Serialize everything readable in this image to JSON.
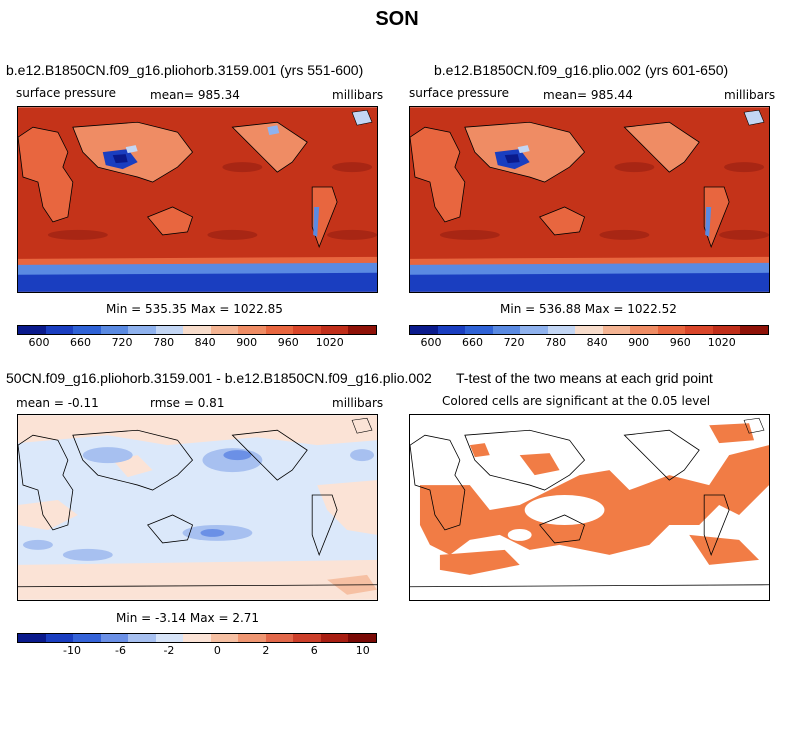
{
  "page": {
    "title": "SON"
  },
  "colors": {
    "absolute_scale": [
      "#0a1a8c",
      "#1a3ec0",
      "#2f62d6",
      "#5a8ae2",
      "#8fb2ee",
      "#c3d6f4",
      "#f7dccb",
      "#f4b493",
      "#ef8c64",
      "#e8663f",
      "#d9462a",
      "#c02e1a",
      "#8f1208"
    ],
    "diff_scale": [
      "#0a1a8c",
      "#1a3ec0",
      "#3563d8",
      "#6b90e6",
      "#a7c0f0",
      "#d7e4f8",
      "#fbe3d6",
      "#f6c0a3",
      "#ef9672",
      "#e2684a",
      "#cc3f2a",
      "#a81e12",
      "#7a0a06"
    ],
    "ocean_abs": "#c43319",
    "ocean_diff": "#dbe8fa",
    "significant": "#f17c45",
    "coast": "#000000"
  },
  "panels": [
    {
      "id": "case1",
      "title": "b.e12.B1850CN.f09_g16.pliohorb.3159.001 (yrs 551-600)",
      "left_label": "surface pressure",
      "center_label": "mean= 985.34",
      "right_label": "millibars",
      "minmax": "Min = 535.35 Max = 1022.85",
      "colorbar_ticks": [
        "600",
        "660",
        "720",
        "780",
        "840",
        "900",
        "960",
        "1020"
      ]
    },
    {
      "id": "case2",
      "title": "b.e12.B1850CN.f09_g16.plio.002 (yrs 601-650)",
      "left_label": "surface pressure",
      "center_label": "mean= 985.44",
      "right_label": "millibars",
      "minmax": "Min = 536.88 Max = 1022.52",
      "colorbar_ticks": [
        "600",
        "660",
        "720",
        "780",
        "840",
        "900",
        "960",
        "1020"
      ]
    },
    {
      "id": "diff",
      "title": "50CN.f09_g16.pliohorb.3159.001 - b.e12.B1850CN.f09_g16.plio.002",
      "left_label": "mean =   -0.11",
      "center_label": "rmse =    0.81",
      "right_label": "millibars",
      "minmax": "Min =  -3.14 Max =   2.71",
      "colorbar_ticks": [
        "-10",
        "-6",
        "-2",
        "0",
        "2",
        "6",
        "10"
      ]
    },
    {
      "id": "ttest",
      "title": "T-test of the two means at each grid point",
      "subtitle": "Colored cells are significant at the 0.05 level"
    }
  ],
  "chart_data": [
    {
      "type": "heatmap",
      "title": "b.e12.B1850CN.f09_g16.pliohorb.3159.001 (yrs 551-600)",
      "variable": "surface pressure",
      "units": "millibars",
      "mean": 985.34,
      "min": 535.35,
      "max": 1022.85,
      "colorbar_levels": [
        600,
        660,
        720,
        780,
        840,
        900,
        960,
        1020
      ]
    },
    {
      "type": "heatmap",
      "title": "b.e12.B1850CN.f09_g16.plio.002 (yrs 601-650)",
      "variable": "surface pressure",
      "units": "millibars",
      "mean": 985.44,
      "min": 536.88,
      "max": 1022.52,
      "colorbar_levels": [
        600,
        660,
        720,
        780,
        840,
        900,
        960,
        1020
      ]
    },
    {
      "type": "heatmap",
      "title": "50CN.f09_g16.pliohorb.3159.001 - b.e12.B1850CN.f09_g16.plio.002",
      "units": "millibars",
      "mean": -0.11,
      "rmse": 0.81,
      "min": -3.14,
      "max": 2.71,
      "colorbar_levels": [
        -10,
        -6,
        -2,
        0,
        2,
        6,
        10
      ]
    },
    {
      "type": "heatmap",
      "title": "T-test of the two means at each grid point",
      "note": "Colored cells are significant at the 0.05 level",
      "significance_level": 0.05
    }
  ]
}
